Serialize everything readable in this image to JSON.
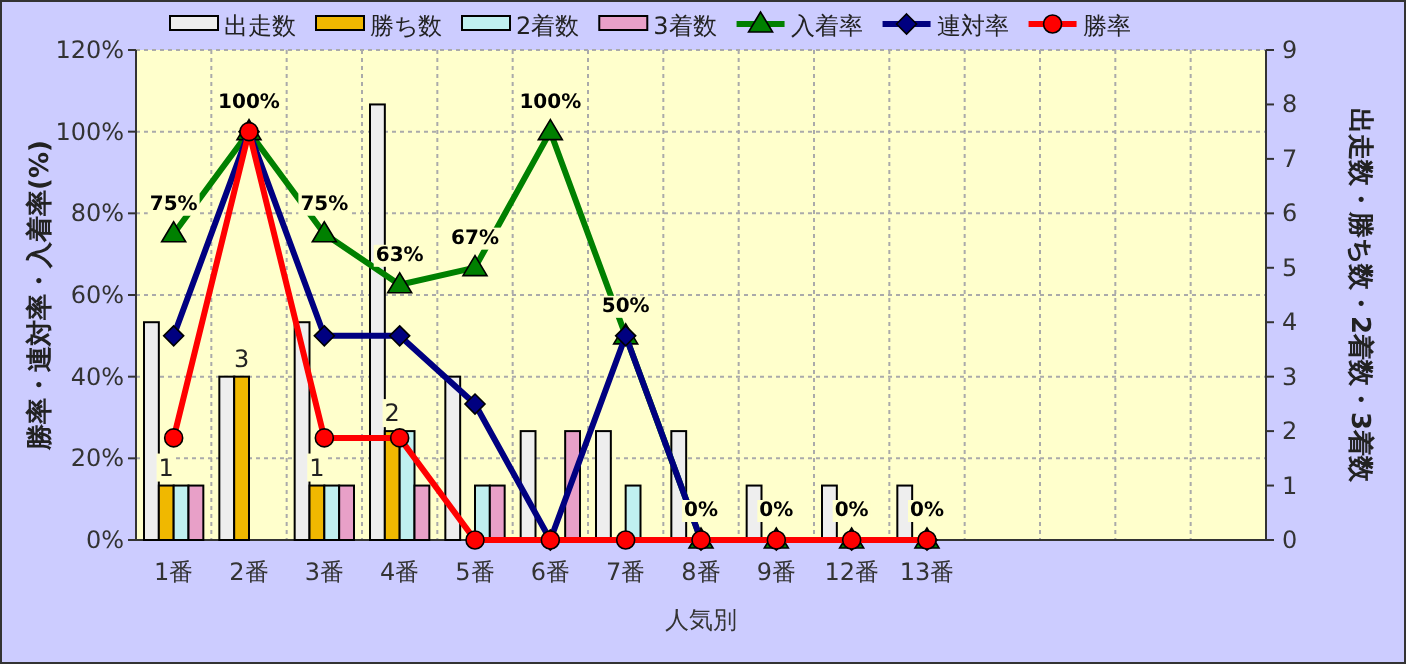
{
  "chart_data": {
    "type": "bar",
    "xlabel": "人気別",
    "ylabel": "勝率・連対率・入着率(%)",
    "y2label": "出走数・勝ち数・2着数・3着数",
    "categories": [
      "1番",
      "2番",
      "3番",
      "4番",
      "5番",
      "6番",
      "7番",
      "8番",
      "9番",
      "12番",
      "13番",
      null,
      null,
      null,
      null
    ],
    "ylim": [
      0,
      120
    ],
    "yticks": [
      {
        "value": 0,
        "label": "0%"
      },
      {
        "value": 20,
        "label": "20%"
      },
      {
        "value": 40,
        "label": "40%"
      },
      {
        "value": 60,
        "label": "60%"
      },
      {
        "value": 80,
        "label": "80%"
      },
      {
        "value": 100,
        "label": "100%"
      },
      {
        "value": 120,
        "label": "120%"
      }
    ],
    "y2lim": [
      0,
      9
    ],
    "y2ticks": [
      0,
      1,
      2,
      3,
      4,
      5,
      6,
      7,
      8,
      9
    ],
    "grid": true,
    "legend": "top",
    "series": [
      {
        "name": "出走数",
        "axis": "y2",
        "color": "#eeeeee",
        "values": [
          4,
          3,
          4,
          8,
          3,
          2,
          2,
          2,
          1,
          1,
          1,
          null,
          null,
          null,
          null
        ]
      },
      {
        "name": "勝ち数",
        "axis": "y2",
        "color": "#f0b800",
        "values": [
          1,
          3,
          1,
          2,
          0,
          0,
          0,
          0,
          0,
          0,
          0,
          null,
          null,
          null,
          null
        ],
        "value_labels": [
          "1",
          "3",
          "1",
          "2",
          null,
          null,
          null,
          null,
          null,
          null,
          null,
          null,
          null,
          null,
          null
        ]
      },
      {
        "name": "2着数",
        "axis": "y2",
        "color": "#c0f0f0",
        "values": [
          1,
          0,
          1,
          2,
          1,
          0,
          1,
          0,
          0,
          0,
          0,
          null,
          null,
          null,
          null
        ]
      },
      {
        "name": "3着数",
        "axis": "y2",
        "color": "#e8a0c8",
        "values": [
          1,
          0,
          1,
          1,
          1,
          2,
          0,
          0,
          0,
          0,
          0,
          null,
          null,
          null,
          null
        ]
      },
      {
        "name": "入着率",
        "type": "line",
        "marker": "triangle",
        "color": "#008000",
        "values": [
          75,
          100,
          75,
          62.5,
          66.7,
          100,
          50,
          0,
          0,
          0,
          0,
          null,
          null,
          null,
          null
        ],
        "value_labels": [
          "75%",
          "100%",
          "75%",
          "63%",
          "67%",
          "100%",
          "50%",
          "0%",
          "0%",
          "0%",
          "0%",
          null,
          null,
          null,
          null
        ]
      },
      {
        "name": "連対率",
        "type": "line",
        "marker": "diamond",
        "color": "#000080",
        "values": [
          50,
          100,
          50,
          50,
          33.3,
          0,
          50,
          0,
          0,
          0,
          0,
          null,
          null,
          null,
          null
        ]
      },
      {
        "name": "勝率",
        "type": "line",
        "marker": "circle",
        "color": "#ff0000",
        "values": [
          25,
          100,
          25,
          25,
          0,
          0,
          0,
          0,
          0,
          0,
          0,
          null,
          null,
          null,
          null
        ]
      }
    ]
  }
}
